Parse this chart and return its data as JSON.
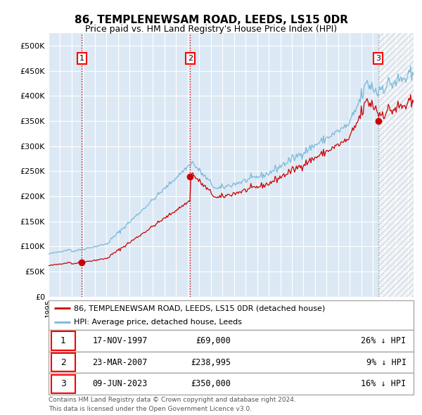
{
  "title": "86, TEMPLENEWSAM ROAD, LEEDS, LS15 0DR",
  "subtitle": "Price paid vs. HM Land Registry's House Price Index (HPI)",
  "legend_line1": "86, TEMPLENEWSAM ROAD, LEEDS, LS15 0DR (detached house)",
  "legend_line2": "HPI: Average price, detached house, Leeds",
  "footer1": "Contains HM Land Registry data © Crown copyright and database right 2024.",
  "footer2": "This data is licensed under the Open Government Licence v3.0.",
  "transactions": [
    {
      "num": 1,
      "date": "17-NOV-1997",
      "price": 69000,
      "pct": "26%",
      "dir": "↓",
      "x_year": 1997.88
    },
    {
      "num": 2,
      "date": "23-MAR-2007",
      "price": 238995,
      "pct": "9%",
      "dir": "↓",
      "x_year": 2007.22
    },
    {
      "num": 3,
      "date": "09-JUN-2023",
      "price": 350000,
      "pct": "16%",
      "dir": "↓",
      "x_year": 2023.44
    }
  ],
  "hpi_color": "#7ab8d9",
  "price_color": "#cc0000",
  "bg_color": "#dce9f5",
  "ylim": [
    0,
    525000
  ],
  "xlim_start": 1995.0,
  "xlim_end": 2026.5,
  "future_x": 2023.44,
  "yticks": [
    0,
    50000,
    100000,
    150000,
    200000,
    250000,
    300000,
    350000,
    400000,
    450000,
    500000
  ]
}
